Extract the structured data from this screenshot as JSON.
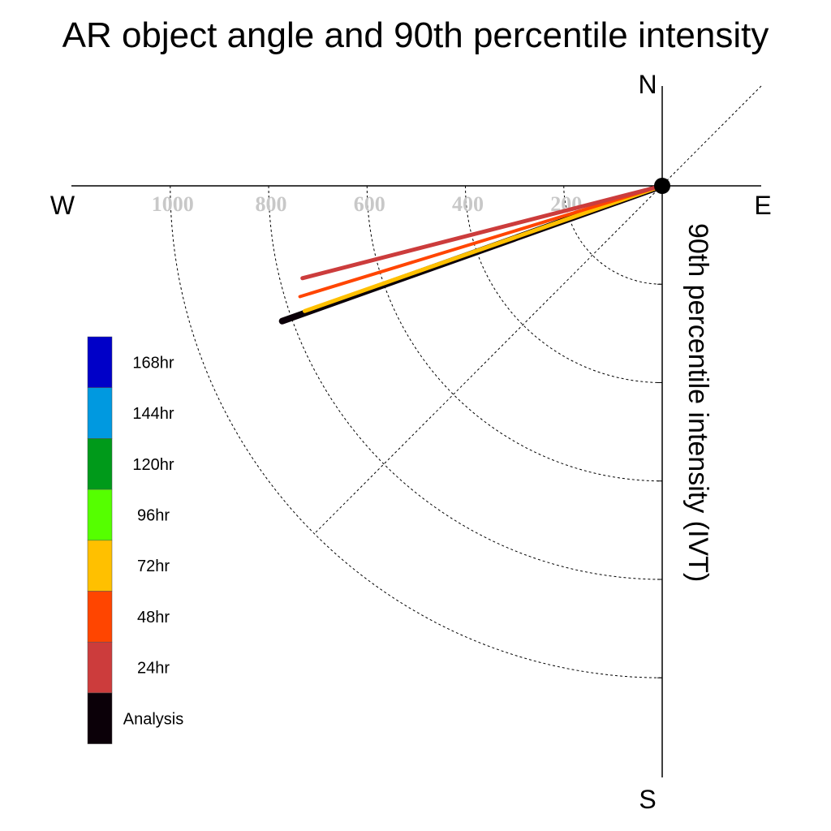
{
  "chart_data": {
    "type": "polar-vector",
    "title": "AR object angle and 90th percentile intensity",
    "ylabel": "90th percentile intensity (IVT)",
    "compass": {
      "north": "N",
      "south": "S",
      "east": "E",
      "west": "W"
    },
    "radial_ticks": [
      "200",
      "400",
      "600",
      "800",
      "1000"
    ],
    "radial_tick_values": [
      200,
      400,
      600,
      800,
      1000
    ],
    "rlim": [
      0,
      1200
    ],
    "grid": true,
    "legend_position": "left",
    "series": [
      {
        "name": "Analysis",
        "color": "#0b0008",
        "intensity": 820,
        "angle_deg_below_west": 19.6
      },
      {
        "name": "72hr",
        "color": "#ffc000",
        "intensity": 770,
        "angle_deg_below_west": 19.3
      },
      {
        "name": "48hr",
        "color": "#ff4500",
        "intensity": 770,
        "angle_deg_below_west": 17.0
      },
      {
        "name": "24hr",
        "color": "#cc3c3c",
        "intensity": 755,
        "angle_deg_below_west": 14.4
      }
    ],
    "legend": [
      {
        "label": "168hr",
        "color": "#0000c8"
      },
      {
        "label": "144hr",
        "color": "#0099e0"
      },
      {
        "label": "120hr",
        "color": "#009a1a"
      },
      {
        "label": "96hr",
        "color": "#55ff00"
      },
      {
        "label": "72hr",
        "color": "#ffc000"
      },
      {
        "label": "48hr",
        "color": "#ff4500"
      },
      {
        "label": "24hr",
        "color": "#cc3c3c"
      },
      {
        "label": "Analysis",
        "color": "#0b0008"
      }
    ]
  }
}
